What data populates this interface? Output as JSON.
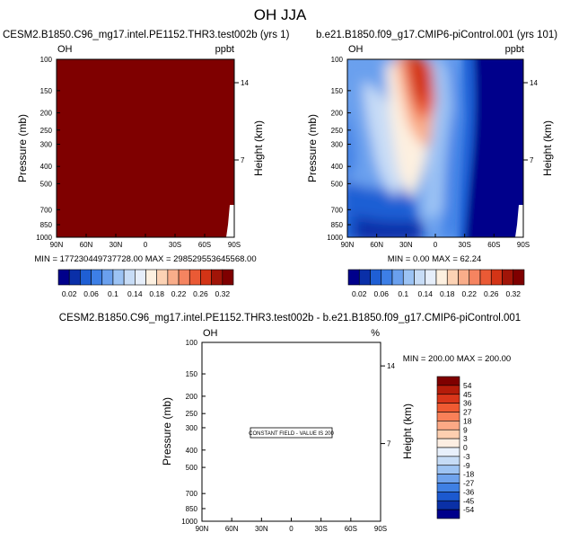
{
  "figure": {
    "title": "OH JJA"
  },
  "chart_data": [
    {
      "type": "heatmap",
      "name": "test-panel",
      "title_left": "CESM2.B1850.C96_mg17.intel.PE1152.THR3.test002b (yrs 1)",
      "variable": "OH",
      "units": "ppbt",
      "ylabel": "Pressure (mb)",
      "ylabel_right": "Height (km)",
      "xticks": [
        "90N",
        "60N",
        "30N",
        "0",
        "30S",
        "60S",
        "90S"
      ],
      "yticks": [
        100,
        150,
        200,
        250,
        300,
        400,
        500,
        700,
        850,
        1000
      ],
      "yticks_right": [
        "14",
        "7"
      ],
      "xlim": [
        90,
        -90
      ],
      "ylim": [
        100,
        1000
      ],
      "field": "uniform maximum",
      "stats_text": "MIN = 177230449737728.00   MAX = 298529553645568.00",
      "min": 177230449737728.0,
      "max": 298529553645568.0
    },
    {
      "type": "heatmap",
      "name": "control-panel",
      "title_left": "b.e21.B1850.f09_g17.CMIP6-piControl.001 (yrs 101)",
      "variable": "OH",
      "units": "ppbt",
      "ylabel": "Pressure (mb)",
      "ylabel_right": "Height (km)",
      "xticks": [
        "90N",
        "60N",
        "30N",
        "0",
        "30S",
        "60S",
        "90S"
      ],
      "yticks": [
        100,
        150,
        200,
        250,
        300,
        400,
        500,
        700,
        850,
        1000
      ],
      "yticks_right": [
        "14",
        "7"
      ],
      "xlim": [
        90,
        -90
      ],
      "ylim": [
        100,
        1000
      ],
      "stats_text": "MIN =   0.00   MAX =  62.24",
      "min": 0.0,
      "max": 62.24
    },
    {
      "type": "heatmap",
      "name": "difference-panel",
      "title_left": "CESM2.B1850.C96_mg17.intel.PE1152.THR3.test002b - b.e21.B1850.f09_g17.CMIP6-piControl.001",
      "variable": "OH",
      "units": "%",
      "ylabel": "Pressure (mb)",
      "ylabel_right": "Height (km)",
      "xticks": [
        "90N",
        "60N",
        "30N",
        "0",
        "30S",
        "60S",
        "90S"
      ],
      "yticks": [
        100,
        150,
        200,
        250,
        300,
        400,
        500,
        700,
        850,
        1000
      ],
      "yticks_right": [
        "14",
        "7"
      ],
      "xlim": [
        90,
        -90
      ],
      "ylim": [
        100,
        1000
      ],
      "constant_field_label": "CONSTANT FIELD - VALUE IS 200",
      "stats_text": "MIN = 200.00  MAX = 200.00",
      "min": 200.0,
      "max": 200.0
    }
  ],
  "colorbar_top": {
    "labels": [
      "0.02",
      "0.06",
      "0.1",
      "0.14",
      "0.18",
      "0.22",
      "0.26",
      "0.32"
    ],
    "colors": [
      "#00008b",
      "#0a2fa8",
      "#1f5fd4",
      "#3d7fe6",
      "#6aa0ee",
      "#9cc3f4",
      "#c7dcf6",
      "#e6eefa",
      "#fdf0e0",
      "#fcd2b4",
      "#f9ad8a",
      "#f58460",
      "#ea5a35",
      "#d33416",
      "#a11508",
      "#7f0000"
    ]
  },
  "colorbar_diff": {
    "labels": [
      "54",
      "45",
      "36",
      "27",
      "18",
      "9",
      "3",
      "0",
      "-3",
      "-9",
      "-18",
      "-27",
      "-36",
      "-45",
      "-54"
    ],
    "colors": [
      "#7f0000",
      "#b51c0a",
      "#d9361a",
      "#ef5a32",
      "#f98058",
      "#fca985",
      "#fdcfb0",
      "#fdeee2",
      "#e8f0fb",
      "#c6dcf6",
      "#9ec4f3",
      "#6fa3ed",
      "#3f80e4",
      "#1c59cf",
      "#0a30a6",
      "#00008b"
    ]
  }
}
